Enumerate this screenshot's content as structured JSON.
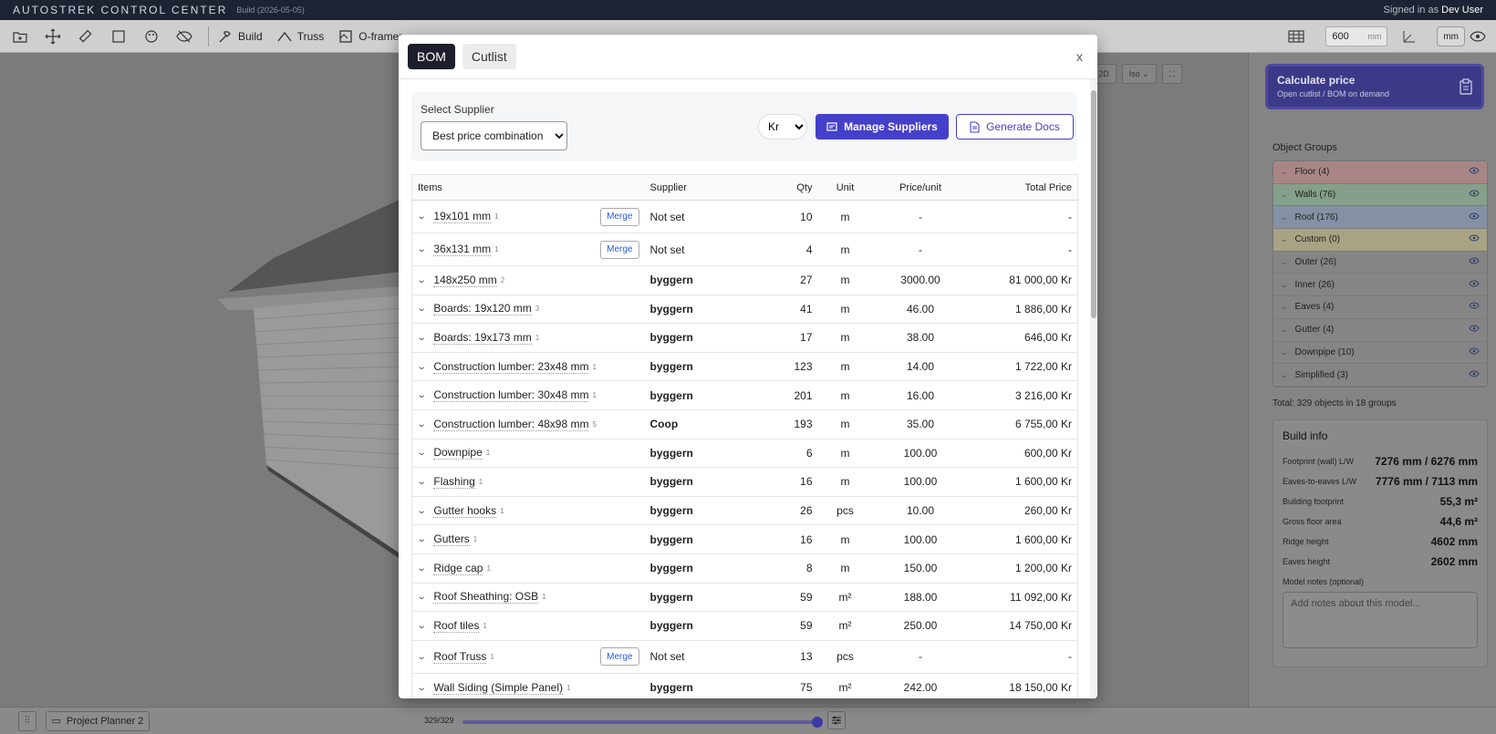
{
  "titlebar": {
    "app": "AUTOSTREK CONTROL CENTER",
    "build": "Build (2026-05-05)",
    "signed_prefix": "Signed in as ",
    "user": "Dev User"
  },
  "toolbar": {
    "build_label": "Build",
    "truss_label": "Truss",
    "oframer_label": "O-framer",
    "mm_value": "600",
    "mm_unit": "mm",
    "unit_pill": "mm"
  },
  "viewport": {
    "mode_2d": "2D",
    "view_iso": "Iso"
  },
  "modal": {
    "tabs": [
      "BOM",
      "Cutlist"
    ],
    "close": "x",
    "supplier_label": "Select Supplier",
    "supplier_selected": "Best price combination",
    "currency": "Kr",
    "manage_label": "Manage Suppliers",
    "generate_label": "Generate Docs",
    "merge_label": "Merge",
    "columns": [
      "Items",
      "Supplier",
      "Qty",
      "Unit",
      "Price/unit",
      "Total Price"
    ],
    "rows": [
      {
        "item": "19x101 mm",
        "n": "1",
        "supplier": "Not set",
        "qty": "10",
        "unit": "m",
        "price": "-",
        "total": "-",
        "merge": true
      },
      {
        "item": "36x131 mm",
        "n": "1",
        "supplier": "Not set",
        "qty": "4",
        "unit": "m",
        "price": "-",
        "total": "-",
        "merge": true
      },
      {
        "item": "148x250 mm",
        "n": "2",
        "supplier": "byggern",
        "qty": "27",
        "unit": "m",
        "price": "3000.00",
        "total": "81 000,00 Kr"
      },
      {
        "item": "Boards: 19x120 mm",
        "n": "3",
        "supplier": "byggern",
        "qty": "41",
        "unit": "m",
        "price": "46.00",
        "total": "1 886,00 Kr"
      },
      {
        "item": "Boards: 19x173 mm",
        "n": "1",
        "supplier": "byggern",
        "qty": "17",
        "unit": "m",
        "price": "38.00",
        "total": "646,00 Kr"
      },
      {
        "item": "Construction lumber: 23x48 mm",
        "n": "1",
        "supplier": "byggern",
        "qty": "123",
        "unit": "m",
        "price": "14.00",
        "total": "1 722,00 Kr"
      },
      {
        "item": "Construction lumber: 30x48 mm",
        "n": "1",
        "supplier": "byggern",
        "qty": "201",
        "unit": "m",
        "price": "16.00",
        "total": "3 216,00 Kr"
      },
      {
        "item": "Construction lumber: 48x98 mm",
        "n": "5",
        "supplier": "Coop",
        "qty": "193",
        "unit": "m",
        "price": "35.00",
        "total": "6 755,00 Kr"
      },
      {
        "item": "Downpipe",
        "n": "1",
        "supplier": "byggern",
        "qty": "6",
        "unit": "m",
        "price": "100.00",
        "total": "600,00 Kr"
      },
      {
        "item": "Flashing",
        "n": "1",
        "supplier": "byggern",
        "qty": "16",
        "unit": "m",
        "price": "100.00",
        "total": "1 600,00 Kr"
      },
      {
        "item": "Gutter hooks",
        "n": "1",
        "supplier": "byggern",
        "qty": "26",
        "unit": "pcs",
        "price": "10.00",
        "total": "260,00 Kr"
      },
      {
        "item": "Gutters",
        "n": "1",
        "supplier": "byggern",
        "qty": "16",
        "unit": "m",
        "price": "100.00",
        "total": "1 600,00 Kr"
      },
      {
        "item": "Ridge cap",
        "n": "1",
        "supplier": "byggern",
        "qty": "8",
        "unit": "m",
        "price": "150.00",
        "total": "1 200,00 Kr"
      },
      {
        "item": "Roof Sheathing: OSB",
        "n": "1",
        "supplier": "byggern",
        "qty": "59",
        "unit": "m²",
        "price": "188.00",
        "total": "11 092,00 Kr"
      },
      {
        "item": "Roof tiles",
        "n": "1",
        "supplier": "byggern",
        "qty": "59",
        "unit": "m²",
        "price": "250.00",
        "total": "14 750,00 Kr"
      },
      {
        "item": "Roof Truss",
        "n": "1",
        "supplier": "Not set",
        "qty": "13",
        "unit": "pcs",
        "price": "-",
        "total": "-",
        "merge": true
      },
      {
        "item": "Wall Siding (Simple Panel)",
        "n": "1",
        "supplier": "byggern",
        "qty": "75",
        "unit": "m²",
        "price": "242.00",
        "total": "18 150,00 Kr"
      }
    ]
  },
  "sidepanel": {
    "calc_title": "Calculate price",
    "calc_sub": "Open cutlist / BOM on demand",
    "groups_title": "Object Groups",
    "groups": [
      {
        "label": "Floor (4)",
        "color": "#a98686"
      },
      {
        "label": "Walls (76)",
        "color": "#84a08a"
      },
      {
        "label": "Roof (176)",
        "color": "#8491a4"
      },
      {
        "label": "Custom (0)",
        "color": "#a8a383"
      },
      {
        "label": "Outer (26)",
        "color": "#858585"
      },
      {
        "label": "Inner (26)",
        "color": "#858585"
      },
      {
        "label": "Eaves (4)",
        "color": "#858585"
      },
      {
        "label": "Gutter (4)",
        "color": "#858585"
      },
      {
        "label": "Downpipe (10)",
        "color": "#858585"
      },
      {
        "label": "Simplified (3)",
        "color": "#858585"
      }
    ],
    "total": "Total: 329 objects in 18 groups",
    "build_info_title": "Build info",
    "build_info": [
      {
        "k": "Footprint (wall) L/W",
        "v": "7276 mm / 6276 mm"
      },
      {
        "k": "Eaves-to-eaves L/W",
        "v": "7776 mm / 7113 mm"
      },
      {
        "k": "Building footprint",
        "v": "55,3 m²"
      },
      {
        "k": "Gross floor area",
        "v": "44,6 m²"
      },
      {
        "k": "Ridge height",
        "v": "4602 mm"
      },
      {
        "k": "Eaves height",
        "v": "2602 mm"
      }
    ],
    "notes_label": "Model notes (optional)",
    "notes_placeholder": "Add notes about this model..."
  },
  "bottombar": {
    "project": "Project Planner 2",
    "count": "329/329",
    "slider_fraction": 1.0
  }
}
